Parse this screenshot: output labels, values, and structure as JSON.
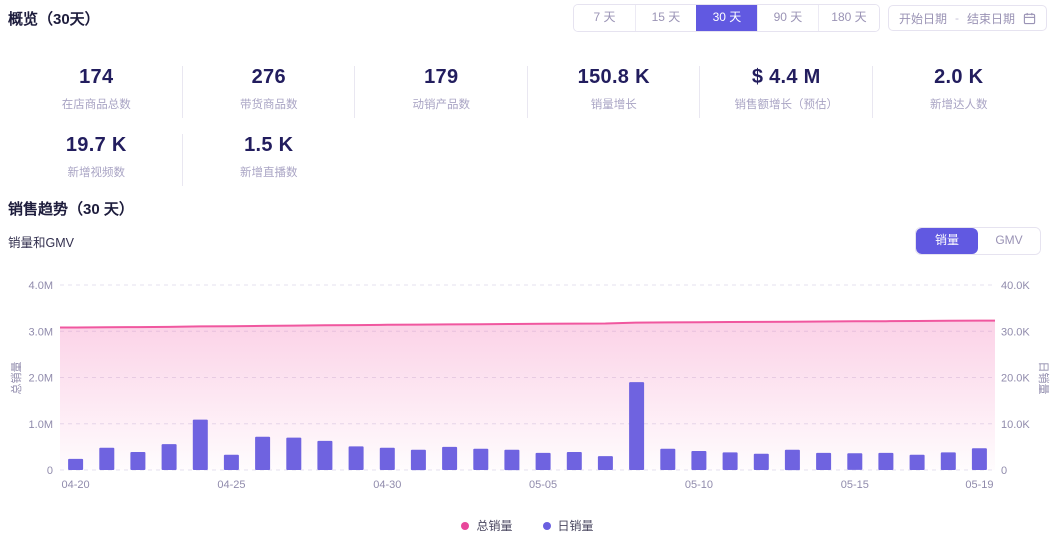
{
  "overview": {
    "title": "概览（30天）",
    "period_options": [
      {
        "label": "7 天",
        "active": false
      },
      {
        "label": "15 天",
        "active": false
      },
      {
        "label": "30 天",
        "active": true
      },
      {
        "label": "90 天",
        "active": false
      },
      {
        "label": "180 天",
        "active": false
      }
    ],
    "date_picker": {
      "start_placeholder": "开始日期",
      "separator": "-",
      "end_placeholder": "结束日期"
    },
    "stats_row1": [
      {
        "value": "174",
        "label": "在店商品总数"
      },
      {
        "value": "276",
        "label": "带货商品数"
      },
      {
        "value": "179",
        "label": "动销产品数"
      },
      {
        "value": "150.8 K",
        "label": "销量增长"
      },
      {
        "value": "$ 4.4 M",
        "label": "销售额增长（预估）"
      },
      {
        "value": "2.0 K",
        "label": "新增达人数"
      }
    ],
    "stats_row2": [
      {
        "value": "19.7 K",
        "label": "新增视频数"
      },
      {
        "value": "1.5 K",
        "label": "新增直播数"
      }
    ]
  },
  "trend": {
    "title": "销售趋势（30 天）",
    "subtitle": "销量和GMV",
    "toggle": [
      {
        "label": "销量",
        "active": true
      },
      {
        "label": "GMV",
        "active": false
      }
    ]
  },
  "chart_data": {
    "type": "combo-area-line-and-bar",
    "x_dates": [
      "04-20",
      "04-21",
      "04-22",
      "04-23",
      "04-24",
      "04-25",
      "04-26",
      "04-27",
      "04-28",
      "04-29",
      "04-30",
      "05-01",
      "05-02",
      "05-03",
      "05-04",
      "05-05",
      "05-06",
      "05-07",
      "05-08",
      "05-09",
      "05-10",
      "05-11",
      "05-12",
      "05-13",
      "05-14",
      "05-15",
      "05-16",
      "05-17",
      "05-18",
      "05-19"
    ],
    "x_ticks": [
      {
        "index": 0,
        "label": "04-20"
      },
      {
        "index": 5,
        "label": "04-25"
      },
      {
        "index": 10,
        "label": "04-30"
      },
      {
        "index": 15,
        "label": "05-05"
      },
      {
        "index": 20,
        "label": "05-10"
      },
      {
        "index": 25,
        "label": "05-15"
      },
      {
        "index": 29,
        "label": "05-19"
      }
    ],
    "series": [
      {
        "name": "总销量",
        "type": "area-line",
        "axis": "left",
        "unit": "M",
        "color": "#f0579f",
        "fill_top": "rgba(242,105,175,0.30)",
        "fill_bottom": "rgba(242,105,175,0.02)",
        "values": [
          3.08,
          3.085,
          3.089,
          3.094,
          3.105,
          3.109,
          3.116,
          3.123,
          3.129,
          3.134,
          3.139,
          3.143,
          3.148,
          3.153,
          3.157,
          3.161,
          3.165,
          3.168,
          3.187,
          3.191,
          3.196,
          3.199,
          3.203,
          3.207,
          3.211,
          3.215,
          3.218,
          3.222,
          3.225,
          3.23
        ]
      },
      {
        "name": "日销量",
        "type": "bar",
        "axis": "right",
        "unit": "K",
        "color": "#6f63e0",
        "values": [
          2.4,
          4.8,
          3.9,
          5.6,
          10.9,
          3.3,
          7.2,
          7.0,
          6.3,
          5.1,
          4.8,
          4.4,
          5.0,
          4.6,
          4.4,
          3.7,
          3.9,
          3.0,
          19.0,
          4.6,
          4.1,
          3.8,
          3.5,
          4.4,
          3.7,
          3.6,
          3.7,
          3.3,
          3.8,
          4.7
        ]
      }
    ],
    "left_axis": {
      "name": "总销量",
      "max": 4.0,
      "ticks": [
        "0",
        "1.0M",
        "2.0M",
        "3.0M",
        "4.0M"
      ]
    },
    "right_axis": {
      "name": "日销量",
      "max": 40,
      "ticks": [
        "0",
        "10.0K",
        "20.0K",
        "30.0K",
        "40.0K"
      ]
    },
    "grid": {
      "horizontal": true,
      "style": "dashed",
      "color": "#e4e1ef"
    },
    "legend": [
      {
        "label": "总销量",
        "color": "#e8479b"
      },
      {
        "label": "日销量",
        "color": "#6a5fe0"
      }
    ]
  },
  "colors": {
    "accent": "#6159e1",
    "bar": "#6f63e0",
    "line": "#f0579f",
    "axis_text": "#908bac",
    "stat_value": "#221d5e",
    "stat_label": "#a9a4c4"
  }
}
